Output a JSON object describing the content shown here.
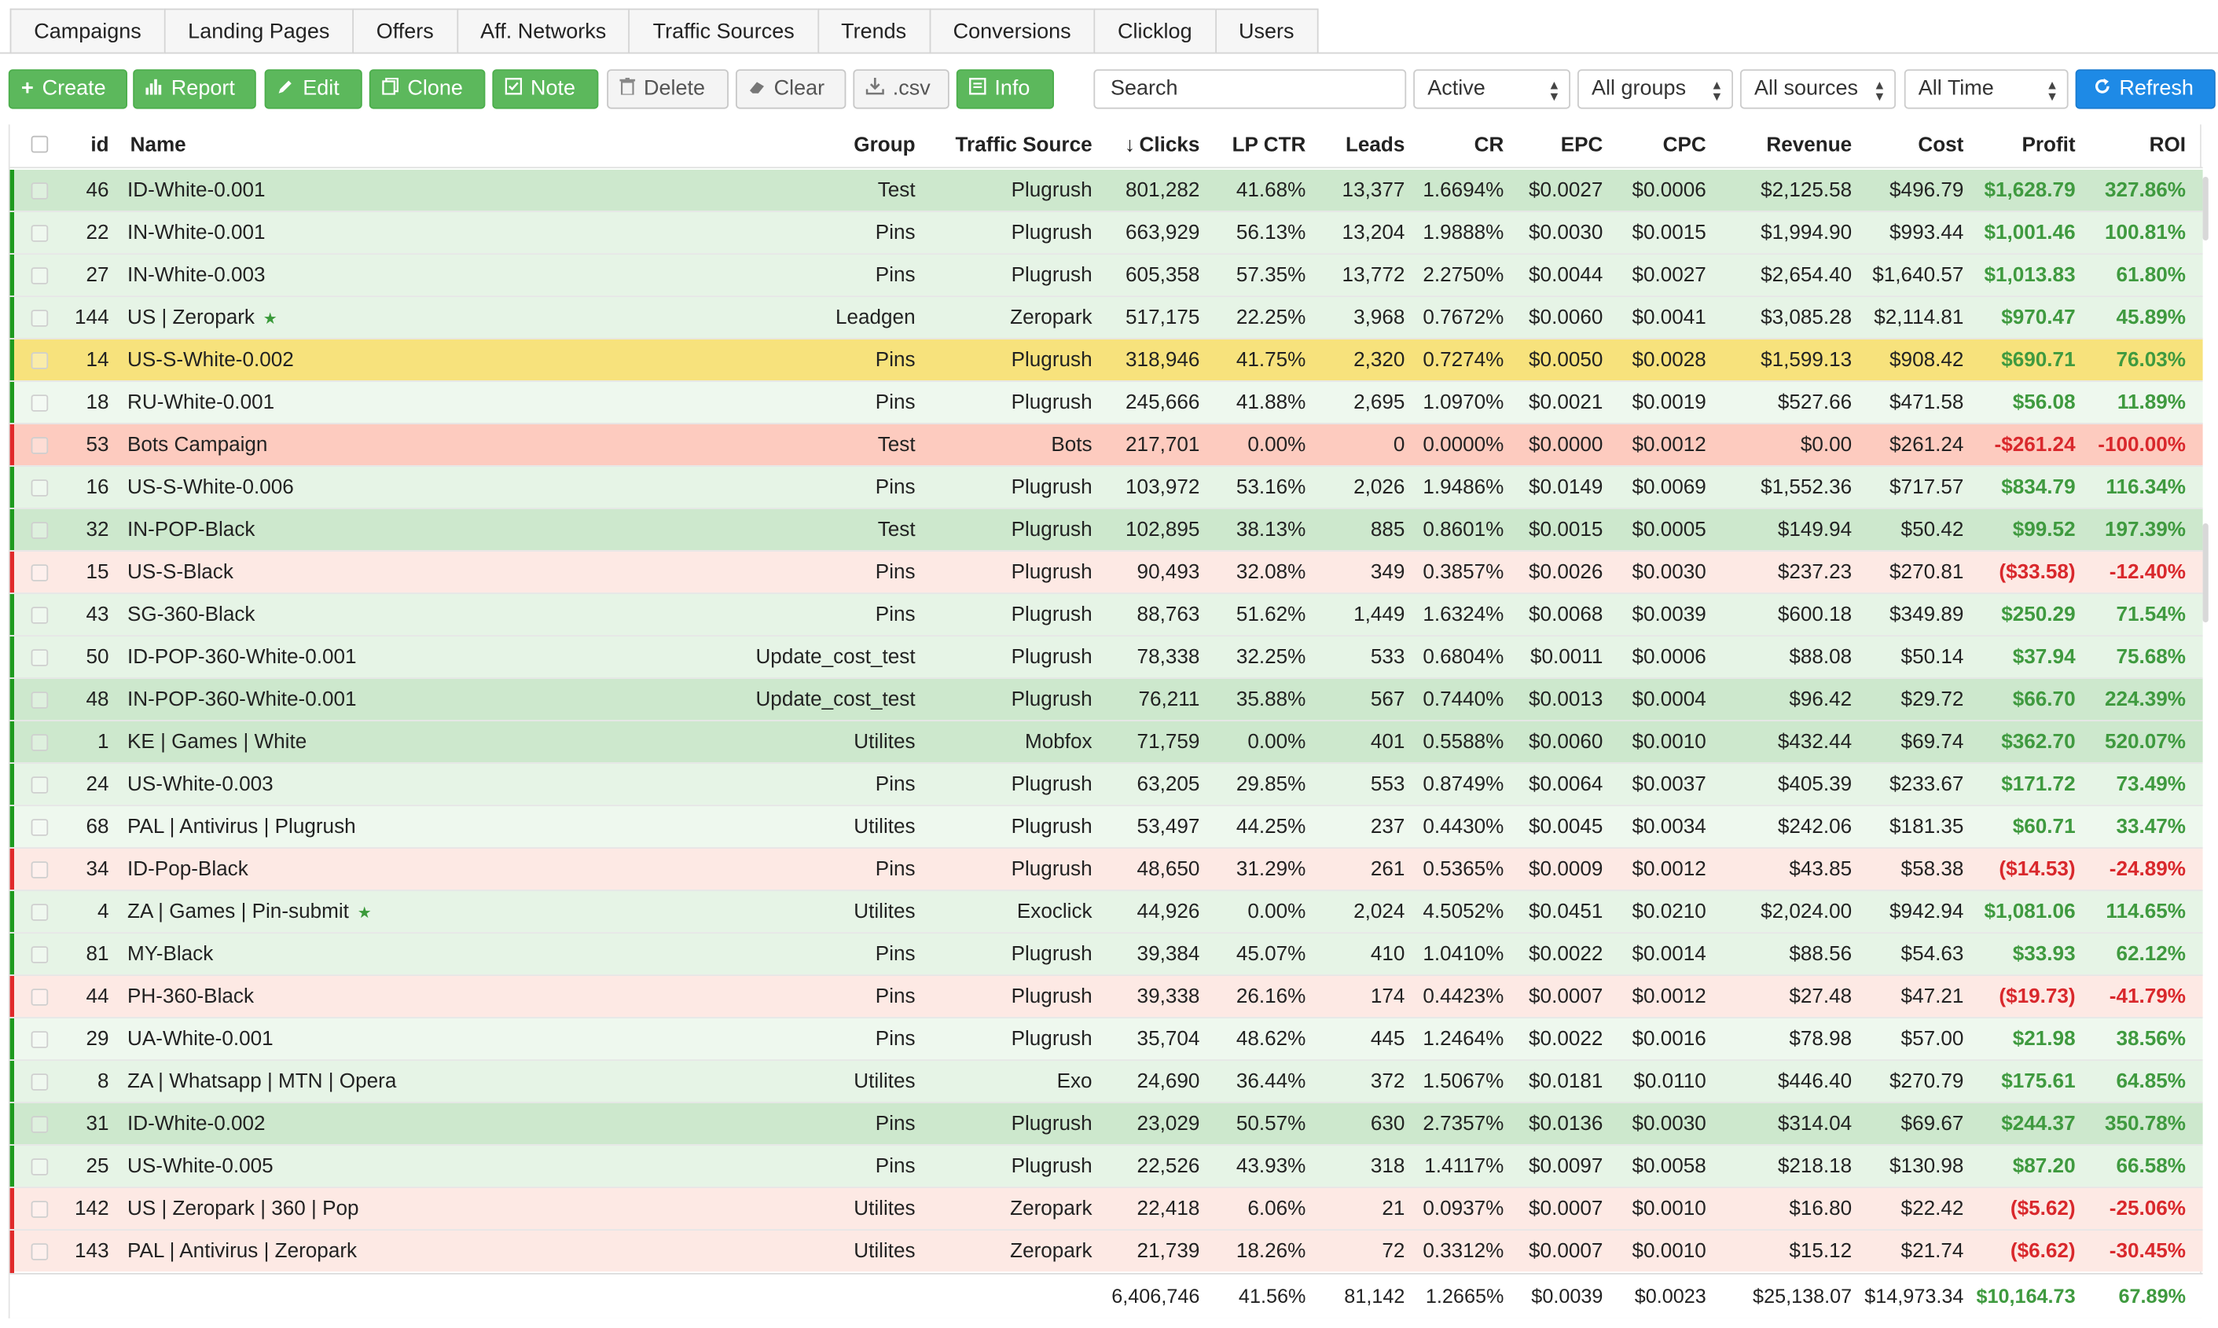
{
  "tabs": [
    "Campaigns",
    "Landing Pages",
    "Offers",
    "Aff. Networks",
    "Traffic Sources",
    "Trends",
    "Conversions",
    "Clicklog",
    "Users"
  ],
  "toolbar": {
    "create": "Create",
    "report": "Report",
    "edit": "Edit",
    "clone": "Clone",
    "note": "Note",
    "delete": "Delete",
    "clear": "Clear",
    "csv": ".csv",
    "info": "Info",
    "search_placeholder": "Search",
    "status_filter": "Active",
    "group_filter": "All groups",
    "source_filter": "All sources",
    "time_filter": "All Time",
    "refresh": "Refresh"
  },
  "icons": {
    "create": "plus-icon",
    "report": "bar-chart-icon",
    "edit": "pencil-icon",
    "clone": "copy-icon",
    "note": "note-icon",
    "delete": "trash-icon",
    "clear": "eraser-icon",
    "csv": "download-icon",
    "info": "info-icon",
    "refresh": "refresh-icon",
    "favorite": "star-icon"
  },
  "colors": {
    "green_row_dark": "#cde8cd",
    "green_row_light": "#e6f4e6",
    "green_row_pale": "#eef8ee",
    "red_row_dark": "#fdcbbf",
    "red_row_light": "#fde9e4",
    "yellow_row": "#f7e27c",
    "green_edge": "#1e9a1e",
    "red_edge": "#e02a2a",
    "positive_text": "#3f9a3f",
    "negative_text": "#d9282c",
    "primary_button": "#5cb85c",
    "refresh_button": "#1e8ae6"
  },
  "table": {
    "columns": {
      "id": "id",
      "name": "Name",
      "group": "Group",
      "source": "Traffic Source",
      "clicks": "Clicks",
      "lpctr": "LP CTR",
      "leads": "Leads",
      "cr": "CR",
      "epc": "EPC",
      "cpc": "CPC",
      "revenue": "Revenue",
      "cost": "Cost",
      "profit": "Profit",
      "roi": "ROI"
    },
    "sort_icon": "arrow-down-icon",
    "rows": [
      {
        "id": "46",
        "name": "ID-White-0.001",
        "star": false,
        "group": "Test",
        "source": "Plugrush",
        "clicks": "801,282",
        "lpctr": "41.68%",
        "leads": "13,377",
        "cr": "1.6694%",
        "epc": "$0.0027",
        "cpc": "$0.0006",
        "revenue": "$2,125.58",
        "cost": "$496.79",
        "profit": "$1,628.79",
        "roi": "327.86%",
        "tone": "green-dark",
        "edge": "green",
        "neg": false
      },
      {
        "id": "22",
        "name": "IN-White-0.001",
        "star": false,
        "group": "Pins",
        "source": "Plugrush",
        "clicks": "663,929",
        "lpctr": "56.13%",
        "leads": "13,204",
        "cr": "1.9888%",
        "epc": "$0.0030",
        "cpc": "$0.0015",
        "revenue": "$1,994.90",
        "cost": "$993.44",
        "profit": "$1,001.46",
        "roi": "100.81%",
        "tone": "green-light",
        "edge": "green",
        "neg": false
      },
      {
        "id": "27",
        "name": "IN-White-0.003",
        "star": false,
        "group": "Pins",
        "source": "Plugrush",
        "clicks": "605,358",
        "lpctr": "57.35%",
        "leads": "13,772",
        "cr": "2.2750%",
        "epc": "$0.0044",
        "cpc": "$0.0027",
        "revenue": "$2,654.40",
        "cost": "$1,640.57",
        "profit": "$1,013.83",
        "roi": "61.80%",
        "tone": "green-light",
        "edge": "green",
        "neg": false
      },
      {
        "id": "144",
        "name": "US | Zeropark",
        "star": true,
        "group": "Leadgen",
        "source": "Zeropark",
        "clicks": "517,175",
        "lpctr": "22.25%",
        "leads": "3,968",
        "cr": "0.7672%",
        "epc": "$0.0060",
        "cpc": "$0.0041",
        "revenue": "$3,085.28",
        "cost": "$2,114.81",
        "profit": "$970.47",
        "roi": "45.89%",
        "tone": "green-light",
        "edge": "green",
        "neg": false
      },
      {
        "id": "14",
        "name": "US-S-White-0.002",
        "star": false,
        "group": "Pins",
        "source": "Plugrush",
        "clicks": "318,946",
        "lpctr": "41.75%",
        "leads": "2,320",
        "cr": "0.7274%",
        "epc": "$0.0050",
        "cpc": "$0.0028",
        "revenue": "$1,599.13",
        "cost": "$908.42",
        "profit": "$690.71",
        "roi": "76.03%",
        "tone": "yellow",
        "edge": "green",
        "neg": false
      },
      {
        "id": "18",
        "name": "RU-White-0.001",
        "star": false,
        "group": "Pins",
        "source": "Plugrush",
        "clicks": "245,666",
        "lpctr": "41.88%",
        "leads": "2,695",
        "cr": "1.0970%",
        "epc": "$0.0021",
        "cpc": "$0.0019",
        "revenue": "$527.66",
        "cost": "$471.58",
        "profit": "$56.08",
        "roi": "11.89%",
        "tone": "green-pale",
        "edge": "green",
        "neg": false
      },
      {
        "id": "53",
        "name": "Bots Campaign",
        "star": false,
        "group": "Test",
        "source": "Bots",
        "clicks": "217,701",
        "lpctr": "0.00%",
        "leads": "0",
        "cr": "0.0000%",
        "epc": "$0.0000",
        "cpc": "$0.0012",
        "revenue": "$0.00",
        "cost": "$261.24",
        "profit": "-$261.24",
        "roi": "-100.00%",
        "tone": "red-dark",
        "edge": "red",
        "neg": true
      },
      {
        "id": "16",
        "name": "US-S-White-0.006",
        "star": false,
        "group": "Pins",
        "source": "Plugrush",
        "clicks": "103,972",
        "lpctr": "53.16%",
        "leads": "2,026",
        "cr": "1.9486%",
        "epc": "$0.0149",
        "cpc": "$0.0069",
        "revenue": "$1,552.36",
        "cost": "$717.57",
        "profit": "$834.79",
        "roi": "116.34%",
        "tone": "green-light",
        "edge": "green",
        "neg": false
      },
      {
        "id": "32",
        "name": "IN-POP-Black",
        "star": false,
        "group": "Test",
        "source": "Plugrush",
        "clicks": "102,895",
        "lpctr": "38.13%",
        "leads": "885",
        "cr": "0.8601%",
        "epc": "$0.0015",
        "cpc": "$0.0005",
        "revenue": "$149.94",
        "cost": "$50.42",
        "profit": "$99.52",
        "roi": "197.39%",
        "tone": "green-dark",
        "edge": "green",
        "neg": false
      },
      {
        "id": "15",
        "name": "US-S-Black",
        "star": false,
        "group": "Pins",
        "source": "Plugrush",
        "clicks": "90,493",
        "lpctr": "32.08%",
        "leads": "349",
        "cr": "0.3857%",
        "epc": "$0.0026",
        "cpc": "$0.0030",
        "revenue": "$237.23",
        "cost": "$270.81",
        "profit": "($33.58)",
        "roi": "-12.40%",
        "tone": "red-light",
        "edge": "red",
        "neg": true
      },
      {
        "id": "43",
        "name": "SG-360-Black",
        "star": false,
        "group": "Pins",
        "source": "Plugrush",
        "clicks": "88,763",
        "lpctr": "51.62%",
        "leads": "1,449",
        "cr": "1.6324%",
        "epc": "$0.0068",
        "cpc": "$0.0039",
        "revenue": "$600.18",
        "cost": "$349.89",
        "profit": "$250.29",
        "roi": "71.54%",
        "tone": "green-light",
        "edge": "green",
        "neg": false
      },
      {
        "id": "50",
        "name": "ID-POP-360-White-0.001",
        "star": false,
        "group": "Update_cost_test",
        "source": "Plugrush",
        "clicks": "78,338",
        "lpctr": "32.25%",
        "leads": "533",
        "cr": "0.6804%",
        "epc": "$0.0011",
        "cpc": "$0.0006",
        "revenue": "$88.08",
        "cost": "$50.14",
        "profit": "$37.94",
        "roi": "75.68%",
        "tone": "green-light",
        "edge": "green",
        "neg": false
      },
      {
        "id": "48",
        "name": "IN-POP-360-White-0.001",
        "star": false,
        "group": "Update_cost_test",
        "source": "Plugrush",
        "clicks": "76,211",
        "lpctr": "35.88%",
        "leads": "567",
        "cr": "0.7440%",
        "epc": "$0.0013",
        "cpc": "$0.0004",
        "revenue": "$96.42",
        "cost": "$29.72",
        "profit": "$66.70",
        "roi": "224.39%",
        "tone": "green-dark",
        "edge": "green",
        "neg": false
      },
      {
        "id": "1",
        "name": "KE | Games | White",
        "star": false,
        "group": "Utilites",
        "source": "Mobfox",
        "clicks": "71,759",
        "lpctr": "0.00%",
        "leads": "401",
        "cr": "0.5588%",
        "epc": "$0.0060",
        "cpc": "$0.0010",
        "revenue": "$432.44",
        "cost": "$69.74",
        "profit": "$362.70",
        "roi": "520.07%",
        "tone": "green-dark",
        "edge": "green",
        "neg": false
      },
      {
        "id": "24",
        "name": "US-White-0.003",
        "star": false,
        "group": "Pins",
        "source": "Plugrush",
        "clicks": "63,205",
        "lpctr": "29.85%",
        "leads": "553",
        "cr": "0.8749%",
        "epc": "$0.0064",
        "cpc": "$0.0037",
        "revenue": "$405.39",
        "cost": "$233.67",
        "profit": "$171.72",
        "roi": "73.49%",
        "tone": "green-light",
        "edge": "green",
        "neg": false
      },
      {
        "id": "68",
        "name": "PAL | Antivirus | Plugrush",
        "star": false,
        "group": "Utilites",
        "source": "Plugrush",
        "clicks": "53,497",
        "lpctr": "44.25%",
        "leads": "237",
        "cr": "0.4430%",
        "epc": "$0.0045",
        "cpc": "$0.0034",
        "revenue": "$242.06",
        "cost": "$181.35",
        "profit": "$60.71",
        "roi": "33.47%",
        "tone": "green-pale",
        "edge": "green",
        "neg": false
      },
      {
        "id": "34",
        "name": "ID-Pop-Black",
        "star": false,
        "group": "Pins",
        "source": "Plugrush",
        "clicks": "48,650",
        "lpctr": "31.29%",
        "leads": "261",
        "cr": "0.5365%",
        "epc": "$0.0009",
        "cpc": "$0.0012",
        "revenue": "$43.85",
        "cost": "$58.38",
        "profit": "($14.53)",
        "roi": "-24.89%",
        "tone": "red-light",
        "edge": "red",
        "neg": true
      },
      {
        "id": "4",
        "name": "ZA | Games | Pin-submit",
        "star": true,
        "group": "Utilites",
        "source": "Exoclick",
        "clicks": "44,926",
        "lpctr": "0.00%",
        "leads": "2,024",
        "cr": "4.5052%",
        "epc": "$0.0451",
        "cpc": "$0.0210",
        "revenue": "$2,024.00",
        "cost": "$942.94",
        "profit": "$1,081.06",
        "roi": "114.65%",
        "tone": "green-light",
        "edge": "green",
        "neg": false
      },
      {
        "id": "81",
        "name": "MY-Black",
        "star": false,
        "group": "Pins",
        "source": "Plugrush",
        "clicks": "39,384",
        "lpctr": "45.07%",
        "leads": "410",
        "cr": "1.0410%",
        "epc": "$0.0022",
        "cpc": "$0.0014",
        "revenue": "$88.56",
        "cost": "$54.63",
        "profit": "$33.93",
        "roi": "62.12%",
        "tone": "green-light",
        "edge": "green",
        "neg": false
      },
      {
        "id": "44",
        "name": "PH-360-Black",
        "star": false,
        "group": "Pins",
        "source": "Plugrush",
        "clicks": "39,338",
        "lpctr": "26.16%",
        "leads": "174",
        "cr": "0.4423%",
        "epc": "$0.0007",
        "cpc": "$0.0012",
        "revenue": "$27.48",
        "cost": "$47.21",
        "profit": "($19.73)",
        "roi": "-41.79%",
        "tone": "red-light",
        "edge": "red",
        "neg": true
      },
      {
        "id": "29",
        "name": "UA-White-0.001",
        "star": false,
        "group": "Pins",
        "source": "Plugrush",
        "clicks": "35,704",
        "lpctr": "48.62%",
        "leads": "445",
        "cr": "1.2464%",
        "epc": "$0.0022",
        "cpc": "$0.0016",
        "revenue": "$78.98",
        "cost": "$57.00",
        "profit": "$21.98",
        "roi": "38.56%",
        "tone": "green-pale",
        "edge": "green",
        "neg": false
      },
      {
        "id": "8",
        "name": "ZA | Whatsapp | MTN | Opera",
        "star": false,
        "group": "Utilites",
        "source": "Exo",
        "clicks": "24,690",
        "lpctr": "36.44%",
        "leads": "372",
        "cr": "1.5067%",
        "epc": "$0.0181",
        "cpc": "$0.0110",
        "revenue": "$446.40",
        "cost": "$270.79",
        "profit": "$175.61",
        "roi": "64.85%",
        "tone": "green-light",
        "edge": "green",
        "neg": false
      },
      {
        "id": "31",
        "name": "ID-White-0.002",
        "star": false,
        "group": "Pins",
        "source": "Plugrush",
        "clicks": "23,029",
        "lpctr": "50.57%",
        "leads": "630",
        "cr": "2.7357%",
        "epc": "$0.0136",
        "cpc": "$0.0030",
        "revenue": "$314.04",
        "cost": "$69.67",
        "profit": "$244.37",
        "roi": "350.78%",
        "tone": "green-dark",
        "edge": "green",
        "neg": false
      },
      {
        "id": "25",
        "name": "US-White-0.005",
        "star": false,
        "group": "Pins",
        "source": "Plugrush",
        "clicks": "22,526",
        "lpctr": "43.93%",
        "leads": "318",
        "cr": "1.4117%",
        "epc": "$0.0097",
        "cpc": "$0.0058",
        "revenue": "$218.18",
        "cost": "$130.98",
        "profit": "$87.20",
        "roi": "66.58%",
        "tone": "green-light",
        "edge": "green",
        "neg": false
      },
      {
        "id": "142",
        "name": "US | Zeropark | 360 | Pop",
        "star": false,
        "group": "Utilites",
        "source": "Zeropark",
        "clicks": "22,418",
        "lpctr": "6.06%",
        "leads": "21",
        "cr": "0.0937%",
        "epc": "$0.0007",
        "cpc": "$0.0010",
        "revenue": "$16.80",
        "cost": "$22.42",
        "profit": "($5.62)",
        "roi": "-25.06%",
        "tone": "red-light",
        "edge": "red",
        "neg": true
      },
      {
        "id": "143",
        "name": "PAL | Antivirus | Zeropark",
        "star": false,
        "group": "Utilites",
        "source": "Zeropark",
        "clicks": "21,739",
        "lpctr": "18.26%",
        "leads": "72",
        "cr": "0.3312%",
        "epc": "$0.0007",
        "cpc": "$0.0010",
        "revenue": "$15.12",
        "cost": "$21.74",
        "profit": "($6.62)",
        "roi": "-30.45%",
        "tone": "red-light",
        "edge": "red",
        "neg": true
      }
    ],
    "totals": {
      "clicks": "6,406,746",
      "lpctr": "41.56%",
      "leads": "81,142",
      "cr": "1.2665%",
      "epc": "$0.0039",
      "cpc": "$0.0023",
      "revenue": "$25,138.07",
      "cost": "$14,973.34",
      "profit": "$10,164.73",
      "roi": "67.89%"
    }
  }
}
